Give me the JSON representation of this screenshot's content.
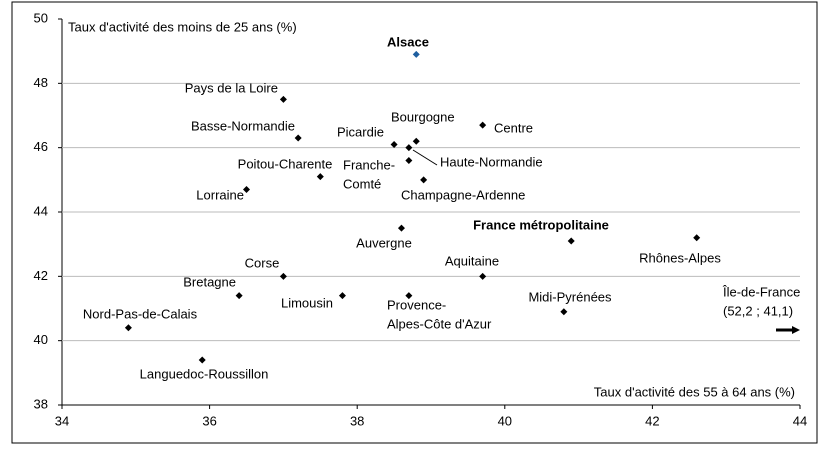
{
  "chart_data": {
    "type": "scatter",
    "x_label": "Taux d'activité des 55 à 64 ans (%)",
    "y_label": "Taux d'activité des moins de 25 ans (%)",
    "labels": [
      [
        "Alsace"
      ],
      [
        "Pays de la Loire"
      ],
      [
        "Basse-Normandie"
      ],
      [
        "Picardie"
      ],
      [
        "Bourgogne"
      ],
      [
        "Centre"
      ],
      [
        "Haute-Normandie"
      ],
      [
        "Franche-",
        "Comté"
      ],
      [
        "Poitou-Charente"
      ],
      [
        "Lorraine"
      ],
      [
        "Champagne-Ardenne"
      ],
      [
        "Auvergne"
      ],
      [
        "France métropolitaine"
      ],
      [
        "Rhônes-Alpes"
      ],
      [
        "Corse"
      ],
      [
        "Aquitaine"
      ],
      [
        "Bretagne"
      ],
      [
        "Limousin"
      ],
      [
        "Provence-",
        "Alpes-Côte d'Azur"
      ],
      [
        "Midi-Pyrénées"
      ],
      [
        "Nord-Pas-de-Calais"
      ],
      [
        "Languedoc-Roussillon"
      ]
    ],
    "x": [
      38.8,
      37.0,
      37.2,
      38.5,
      38.8,
      39.7,
      38.7,
      38.7,
      37.5,
      36.5,
      38.9,
      38.6,
      40.9,
      42.6,
      37.0,
      39.7,
      36.4,
      37.8,
      38.7,
      40.8,
      34.9,
      35.9
    ],
    "y": [
      48.9,
      47.5,
      46.3,
      46.1,
      46.2,
      46.7,
      46.0,
      45.6,
      45.1,
      44.7,
      45.0,
      43.5,
      43.1,
      43.2,
      42.0,
      42.0,
      41.4,
      41.4,
      41.4,
      40.9,
      40.4,
      39.4
    ],
    "colors": [
      "#1f5fa0",
      "#000000",
      "#000000",
      "#000000",
      "#000000",
      "#000000",
      "#000000",
      "#000000",
      "#000000",
      "#000000",
      "#000000",
      "#000000",
      "#000000",
      "#000000",
      "#000000",
      "#000000",
      "#000000",
      "#000000",
      "#000000",
      "#000000",
      "#000000",
      "#000000"
    ],
    "annotation": [
      "Île-de-France",
      "(52,2 ; 41,1)"
    ],
    "xlim": [
      34,
      44
    ],
    "xticks": [
      34,
      36,
      38,
      40,
      42,
      44
    ],
    "ylim": [
      38,
      50
    ],
    "yticks": [
      38,
      40,
      42,
      44,
      46,
      48,
      50
    ],
    "grid": true
  }
}
